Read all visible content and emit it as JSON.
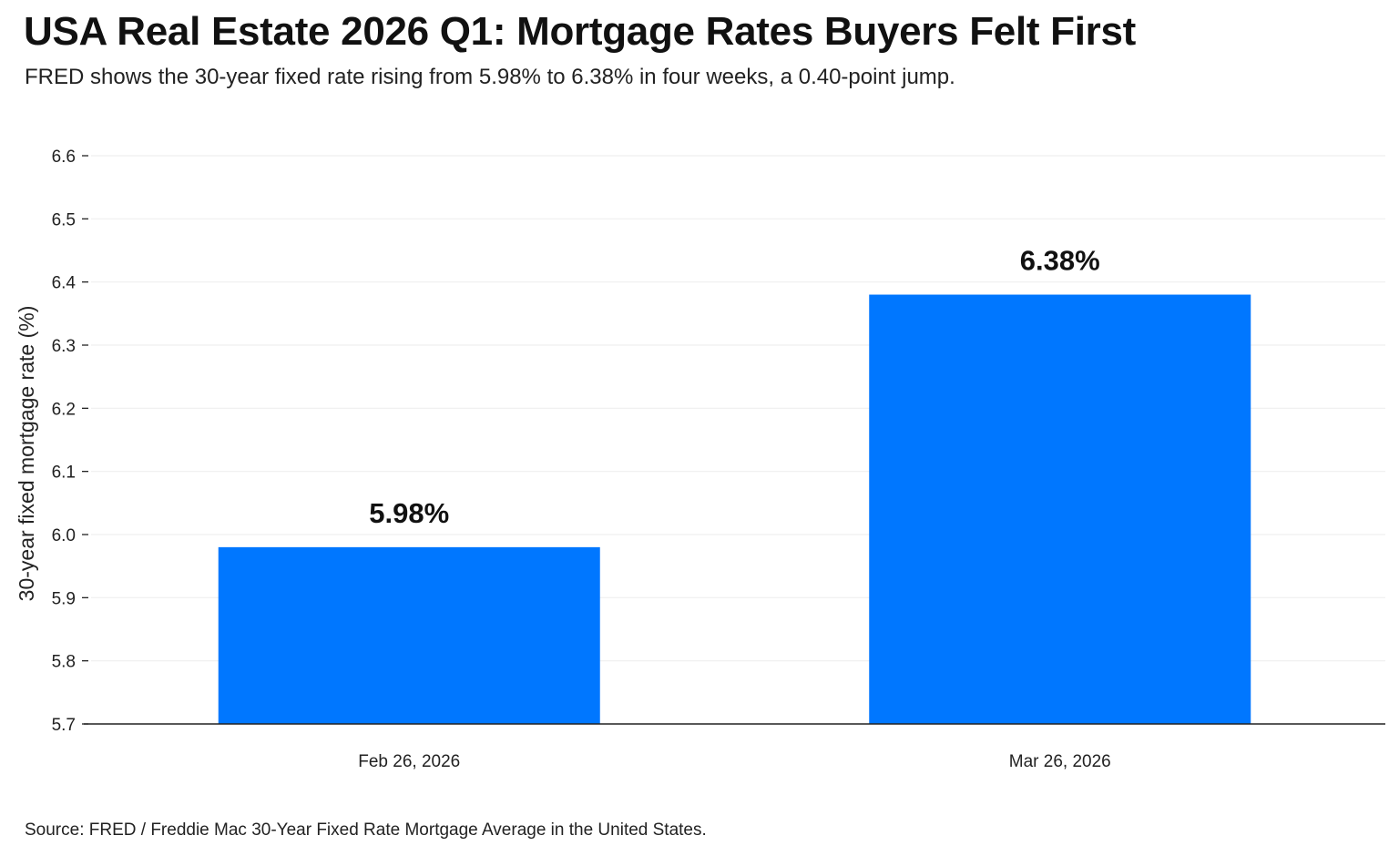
{
  "header": {
    "title": "USA Real Estate 2026 Q1: Mortgage Rates Buyers Felt First",
    "subtitle": "FRED shows the 30-year fixed rate rising from 5.98% to 6.38% in four weeks, a 0.40-point jump."
  },
  "footer": {
    "source": "Source: FRED / Freddie Mac 30-Year Fixed Rate Mortgage Average in the United States."
  },
  "colors": {
    "bar": "#0077ff",
    "grid": "#efefef",
    "axis": "#222222"
  },
  "chart_data": {
    "type": "bar",
    "categories": [
      "Feb 26, 2026",
      "Mar 26, 2026"
    ],
    "values": [
      5.98,
      6.38
    ],
    "data_labels": [
      "5.98%",
      "6.38%"
    ],
    "title": "USA Real Estate 2026 Q1: Mortgage Rates Buyers Felt First",
    "subtitle": "FRED shows the 30-year fixed rate rising from 5.98% to 6.38% in four weeks, a 0.40-point jump.",
    "xlabel": "",
    "ylabel": "30-year fixed mortgage rate (%)",
    "ylim": [
      5.7,
      6.6
    ],
    "yticks": [
      "5.7",
      "5.8",
      "5.9",
      "6.0",
      "6.1",
      "6.2",
      "6.3",
      "6.4",
      "6.5",
      "6.6"
    ],
    "grid": true,
    "legend": "none"
  }
}
